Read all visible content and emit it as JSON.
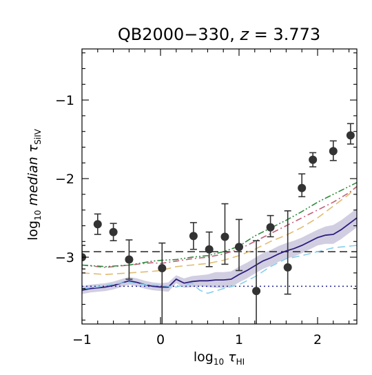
{
  "chart_data": {
    "type": "line",
    "title": "QB2000−330, z = 3.773",
    "title_parts": {
      "name": "QB2000−330, ",
      "var": "z",
      "rest": " = 3.773"
    },
    "xlabel": "log10 τHI",
    "xlabel_parts": {
      "pre": "log",
      "sub1": "10",
      "mid": " τ",
      "sub2": "HI"
    },
    "ylabel": "log10 median τSiIV",
    "ylabel_parts": {
      "pre": "log",
      "sub1": "10",
      "mid": " median τ",
      "sub2": "SiIV"
    },
    "xlim": [
      -1.0,
      2.5
    ],
    "ylim": [
      -3.85,
      -0.35
    ],
    "x_ticks": [
      -1,
      0,
      1,
      2
    ],
    "x_tick_labels": [
      "−1",
      "0",
      "1",
      "2"
    ],
    "y_ticks": [
      -3,
      -2,
      -1
    ],
    "y_tick_labels": [
      "−3",
      "−2",
      "−1"
    ],
    "grid": false,
    "observed": {
      "name": "observed",
      "color": "#333333",
      "x": [
        -1.0,
        -0.8,
        -0.6,
        -0.4,
        0.02,
        0.42,
        0.62,
        0.82,
        1.0,
        1.22,
        1.4,
        1.62,
        1.8,
        1.94,
        2.2,
        2.42
      ],
      "y": [
        -3.0,
        -2.58,
        -2.68,
        -3.03,
        -3.14,
        -2.73,
        -2.9,
        -2.74,
        -2.87,
        -3.43,
        -2.62,
        -3.13,
        -2.12,
        -1.76,
        -1.65,
        -1.45
      ],
      "err_low": [
        0.15,
        0.13,
        0.11,
        0.25,
        1.5,
        0.17,
        0.22,
        0.35,
        0.3,
        0.55,
        0.12,
        0.34,
        0.11,
        0.09,
        0.12,
        0.11
      ],
      "err_high": [
        0.15,
        0.13,
        0.11,
        0.25,
        0.32,
        0.17,
        0.22,
        0.42,
        0.35,
        0.64,
        0.15,
        0.72,
        0.18,
        0.09,
        0.13,
        0.15
      ]
    },
    "series": [
      {
        "style": "dashed",
        "color": "#222222",
        "x": [
          -1.0,
          2.5
        ],
        "y": [
          -2.93,
          -2.93
        ]
      },
      {
        "style": "dotted",
        "color": "#2c2c9a",
        "x": [
          -1.0,
          2.5
        ],
        "y": [
          -3.37,
          -3.37
        ]
      },
      {
        "style": "solid",
        "color": "#2c1e7d",
        "band": [
          0.05,
          0.05,
          0.05,
          0.05,
          0.05,
          0.05,
          0.05,
          0.05,
          0.05,
          0.05,
          0.05,
          0.06,
          0.05,
          0.06,
          0.07,
          0.07,
          0.08,
          0.1,
          0.1,
          0.1,
          0.1,
          0.1,
          0.1,
          0.1,
          0.1,
          0.1,
          0.1,
          0.1,
          0.1,
          0.1,
          0.1,
          0.11,
          0.12,
          0.12,
          0.12
        ],
        "x": [
          -1.0,
          -0.9,
          -0.8,
          -0.7,
          -0.6,
          -0.5,
          -0.4,
          -0.3,
          -0.2,
          -0.1,
          0.0,
          0.1,
          0.2,
          0.3,
          0.4,
          0.5,
          0.6,
          0.7,
          0.8,
          0.9,
          1.0,
          1.1,
          1.2,
          1.3,
          1.4,
          1.5,
          1.6,
          1.7,
          1.8,
          1.9,
          2.0,
          2.1,
          2.2,
          2.3,
          2.5
        ],
        "y": [
          -3.42,
          -3.4,
          -3.39,
          -3.38,
          -3.36,
          -3.33,
          -3.3,
          -3.32,
          -3.35,
          -3.37,
          -3.38,
          -3.38,
          -3.28,
          -3.33,
          -3.31,
          -3.3,
          -3.3,
          -3.29,
          -3.29,
          -3.28,
          -3.22,
          -3.17,
          -3.11,
          -3.05,
          -3.01,
          -2.96,
          -2.92,
          -2.89,
          -2.85,
          -2.8,
          -2.75,
          -2.72,
          -2.71,
          -2.65,
          -2.5
        ]
      },
      {
        "style": "dashed",
        "color": "#87ceeb",
        "x": [
          -1.0,
          -0.8,
          -0.6,
          -0.4,
          -0.2,
          0.0,
          0.2,
          0.4,
          0.5,
          0.6,
          0.8,
          1.0,
          1.2,
          1.4,
          1.6,
          1.8,
          2.0,
          2.2,
          2.5
        ],
        "y": [
          -3.4,
          -3.38,
          -3.34,
          -3.32,
          -3.35,
          -3.36,
          -3.38,
          -3.33,
          -3.42,
          -3.46,
          -3.4,
          -3.35,
          -3.25,
          -3.12,
          -3.02,
          -2.98,
          -2.93,
          -2.88,
          -2.85
        ]
      },
      {
        "style": "dashed",
        "color": "#e0bb70",
        "x": [
          -1.0,
          -0.7,
          -0.4,
          -0.1,
          0.0,
          0.2,
          0.4,
          0.6,
          0.8,
          1.0,
          1.2,
          1.4,
          1.6,
          1.8,
          2.0,
          2.2,
          2.4,
          2.5
        ],
        "y": [
          -3.2,
          -3.22,
          -3.2,
          -3.18,
          -3.17,
          -3.12,
          -3.1,
          -3.08,
          -3.04,
          -2.98,
          -2.9,
          -2.8,
          -2.72,
          -2.62,
          -2.5,
          -2.35,
          -2.2,
          -2.1
        ]
      },
      {
        "style": "dashdot",
        "color": "#c0607a",
        "x": [
          -1.0,
          -0.7,
          -0.4,
          -0.1,
          0.0,
          0.2,
          0.4,
          0.6,
          0.8,
          1.0,
          1.2,
          1.4,
          1.6,
          1.8,
          2.0,
          2.2,
          2.4,
          2.5
        ],
        "y": [
          -3.1,
          -3.13,
          -3.1,
          -3.07,
          -3.08,
          -3.05,
          -3.02,
          -3.0,
          -2.96,
          -2.9,
          -2.8,
          -2.7,
          -2.6,
          -2.5,
          -2.4,
          -2.3,
          -2.18,
          -2.1
        ]
      },
      {
        "style": "dashdotdot",
        "color": "#2e8b3e",
        "x": [
          -1.0,
          -0.7,
          -0.4,
          -0.1,
          0.0,
          0.2,
          0.4,
          0.6,
          0.8,
          1.0,
          1.2,
          1.4,
          1.6,
          1.8,
          2.0,
          2.2,
          2.4,
          2.5
        ],
        "y": [
          -3.1,
          -3.12,
          -3.1,
          -3.05,
          -3.04,
          -3.03,
          -3.0,
          -2.98,
          -2.93,
          -2.86,
          -2.73,
          -2.63,
          -2.53,
          -2.42,
          -2.3,
          -2.2,
          -2.1,
          -2.05
        ]
      }
    ]
  }
}
